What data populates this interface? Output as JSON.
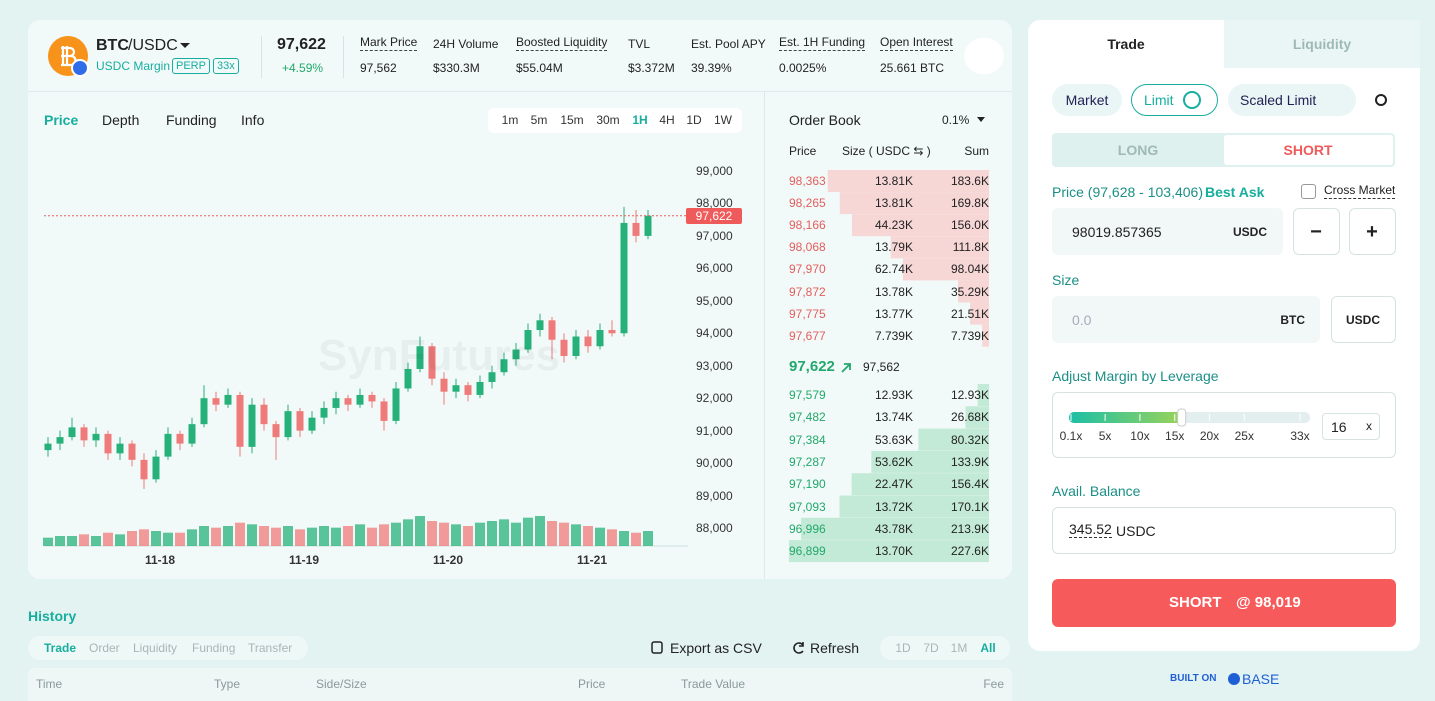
{
  "header": {
    "base": "BTC",
    "quote": "/USDC",
    "margin": "USDC Margin",
    "tag_perp": "PERP",
    "tag_lev": "33x",
    "price": "97,622",
    "change": "+4.59%",
    "stats": [
      {
        "label": "Mark Price",
        "value": "97,562"
      },
      {
        "label": "24H Volume",
        "value": "$330.3M"
      },
      {
        "label": "Boosted Liquidity",
        "value": "$55.04M"
      },
      {
        "label": "TVL",
        "value": "$3.372M"
      },
      {
        "label": "Est. Pool APY",
        "value": "39.39%"
      },
      {
        "label": "Est. 1H Funding",
        "value": "0.0025%"
      },
      {
        "label": "Open Interest",
        "value": "25.661 BTC"
      }
    ]
  },
  "chart_tabs": [
    "Price",
    "Depth",
    "Funding",
    "Info"
  ],
  "intervals": [
    "1m",
    "5m",
    "15m",
    "30m",
    "1H",
    "4H",
    "1D",
    "1W"
  ],
  "watermark": "SynFutures",
  "price_chart": {
    "type": "candlestick",
    "ylim": [
      88000,
      99000
    ],
    "yticks": [
      {
        "value": 99000,
        "label": "99,000"
      },
      {
        "value": 98000,
        "label": "98,000"
      },
      {
        "value": 97000,
        "label": "97,000"
      },
      {
        "value": 96000,
        "label": "96,000"
      },
      {
        "value": 95000,
        "label": "95,000"
      },
      {
        "value": 94000,
        "label": "94,000"
      },
      {
        "value": 93000,
        "label": "93,000"
      },
      {
        "value": 92000,
        "label": "92,000"
      },
      {
        "value": 91000,
        "label": "91,000"
      },
      {
        "value": 90000,
        "label": "90,000"
      },
      {
        "value": 89000,
        "label": "89,000"
      },
      {
        "value": 88000,
        "label": "88,000"
      }
    ],
    "xticks": [
      "11-18",
      "11-19",
      "11-20",
      "11-21"
    ],
    "last_price": {
      "value": 97622,
      "label": "97,622"
    },
    "up_color": "#26b07a",
    "down_color": "#ef7a7a",
    "candles": [
      [
        90400,
        90800,
        90200,
        90600
      ],
      [
        90600,
        91000,
        90400,
        90800
      ],
      [
        90800,
        91400,
        90700,
        91100
      ],
      [
        91100,
        91200,
        90500,
        90700
      ],
      [
        90700,
        91100,
        90500,
        90900
      ],
      [
        90900,
        91000,
        90100,
        90300
      ],
      [
        90300,
        90800,
        90100,
        90600
      ],
      [
        90600,
        90700,
        89900,
        90100
      ],
      [
        90100,
        90300,
        89200,
        89500
      ],
      [
        89500,
        90400,
        89400,
        90200
      ],
      [
        90200,
        91100,
        90100,
        90900
      ],
      [
        90900,
        91000,
        90400,
        90600
      ],
      [
        90600,
        91400,
        90500,
        91200
      ],
      [
        91200,
        92400,
        91100,
        92000
      ],
      [
        92000,
        92200,
        91600,
        91800
      ],
      [
        91800,
        92300,
        91700,
        92100
      ],
      [
        92100,
        92200,
        90200,
        90500
      ],
      [
        90500,
        92000,
        90300,
        91800
      ],
      [
        91800,
        92000,
        91000,
        91200
      ],
      [
        91200,
        91300,
        90100,
        90800
      ],
      [
        90800,
        91800,
        90700,
        91600
      ],
      [
        91600,
        91700,
        90800,
        91000
      ],
      [
        91000,
        91600,
        90900,
        91400
      ],
      [
        91400,
        91900,
        91200,
        91700
      ],
      [
        91700,
        92200,
        91500,
        92000
      ],
      [
        92000,
        92100,
        91600,
        91800
      ],
      [
        91800,
        92300,
        91700,
        92100
      ],
      [
        92100,
        92200,
        91700,
        91900
      ],
      [
        91900,
        92000,
        91000,
        91300
      ],
      [
        91300,
        92500,
        91200,
        92300
      ],
      [
        92300,
        93100,
        92200,
        92900
      ],
      [
        92900,
        93900,
        92800,
        93600
      ],
      [
        93600,
        93700,
        92400,
        92600
      ],
      [
        92600,
        92800,
        91800,
        92200
      ],
      [
        92200,
        92600,
        92000,
        92400
      ],
      [
        92400,
        92500,
        91900,
        92100
      ],
      [
        92100,
        92700,
        92000,
        92500
      ],
      [
        92500,
        93000,
        92300,
        92800
      ],
      [
        92800,
        93400,
        92700,
        93200
      ],
      [
        93200,
        93700,
        93000,
        93500
      ],
      [
        93500,
        94300,
        93400,
        94100
      ],
      [
        94100,
        94600,
        93900,
        94400
      ],
      [
        94400,
        94500,
        93200,
        93800
      ],
      [
        93800,
        94000,
        93100,
        93300
      ],
      [
        93300,
        94100,
        93200,
        93900
      ],
      [
        93900,
        94100,
        93400,
        93600
      ],
      [
        93600,
        94300,
        93500,
        94100
      ],
      [
        94100,
        94400,
        93900,
        94000
      ],
      [
        94000,
        97900,
        93900,
        97400
      ],
      [
        97400,
        97800,
        96800,
        97000
      ],
      [
        97000,
        97800,
        96900,
        97622
      ]
    ],
    "volume": [
      5,
      6,
      6,
      7,
      6,
      8,
      7,
      9,
      10,
      9,
      8,
      8,
      10,
      12,
      11,
      12,
      14,
      13,
      12,
      11,
      12,
      10,
      11,
      12,
      11,
      12,
      13,
      11,
      13,
      14,
      16,
      18,
      15,
      14,
      13,
      12,
      14,
      15,
      16,
      14,
      17,
      18,
      15,
      14,
      13,
      12,
      11,
      10,
      9,
      8,
      9
    ]
  },
  "order_book": {
    "title": "Order Book",
    "precision": "0.1%",
    "columns": [
      "Price",
      "Size ( USDC ⇆ )",
      "Sum"
    ],
    "asks": [
      {
        "price": "98,363",
        "size": "13.81K",
        "sum": {
          "value": 183.6,
          "label": "183.6K"
        }
      },
      {
        "price": "98,265",
        "size": "13.81K",
        "sum": {
          "value": 169.8,
          "label": "169.8K"
        }
      },
      {
        "price": "98,166",
        "size": "44.23K",
        "sum": {
          "value": 156.0,
          "label": "156.0K"
        }
      },
      {
        "price": "98,068",
        "size": "13.79K",
        "sum": {
          "value": 111.8,
          "label": "111.8K"
        }
      },
      {
        "price": "97,970",
        "size": "62.74K",
        "sum": {
          "value": 98.04,
          "label": "98.04K"
        }
      },
      {
        "price": "97,872",
        "size": "13.78K",
        "sum": {
          "value": 35.29,
          "label": "35.29K"
        }
      },
      {
        "price": "97,775",
        "size": "13.77K",
        "sum": {
          "value": 21.51,
          "label": "21.51K"
        }
      },
      {
        "price": "97,677",
        "size": "7.739K",
        "sum": {
          "value": 7.739,
          "label": "7.739K"
        }
      }
    ],
    "mid_price": "97,622",
    "mid_mark": "97,562",
    "bids": [
      {
        "price": "97,579",
        "size": "12.93K",
        "sum": {
          "value": 12.93,
          "label": "12.93K"
        }
      },
      {
        "price": "97,482",
        "size": "13.74K",
        "sum": {
          "value": 26.68,
          "label": "26.68K"
        }
      },
      {
        "price": "97,384",
        "size": "53.63K",
        "sum": {
          "value": 80.32,
          "label": "80.32K"
        }
      },
      {
        "price": "97,287",
        "size": "53.62K",
        "sum": {
          "value": 133.9,
          "label": "133.9K"
        }
      },
      {
        "price": "97,190",
        "size": "22.47K",
        "sum": {
          "value": 156.4,
          "label": "156.4K"
        }
      },
      {
        "price": "97,093",
        "size": "13.72K",
        "sum": {
          "value": 170.1,
          "label": "170.1K"
        }
      },
      {
        "price": "96,996",
        "size": "43.78K",
        "sum": {
          "value": 213.9,
          "label": "213.9K"
        }
      },
      {
        "price": "96,899",
        "size": "13.70K",
        "sum": {
          "value": 227.6,
          "label": "227.6K"
        }
      }
    ]
  },
  "trade_panel": {
    "tabs": [
      "Trade",
      "Liquidity"
    ],
    "order_types": [
      "Market",
      "Limit",
      "Scaled Limit"
    ],
    "sides": [
      "LONG",
      "SHORT"
    ],
    "price_label": "Price (97,628 - 103,406)",
    "best_ask": "Best Ask",
    "cross_market": "Cross Market",
    "price_input": "98019.857365",
    "price_unit": "USDC",
    "minus": "−",
    "plus": "+",
    "size_label": "Size",
    "size_placeholder": "0.0",
    "size_unit": "BTC",
    "size_toggle": "USDC",
    "leverage_label": "Adjust Margin by Leverage",
    "leverage_ticks": [
      {
        "value": 0.1,
        "label": "0.1x"
      },
      {
        "value": 5,
        "label": "5x"
      },
      {
        "value": 10,
        "label": "10x"
      },
      {
        "value": 15,
        "label": "15x"
      },
      {
        "value": 20,
        "label": "20x"
      },
      {
        "value": 25,
        "label": "25x"
      },
      {
        "value": 33,
        "label": "33x"
      }
    ],
    "leverage": 16,
    "leverage_unit": "x",
    "balance_label": "Avail. Balance",
    "balance": "345.52",
    "balance_unit": "USDC",
    "submit": "SHORT",
    "submit_price": "@ 98,019"
  },
  "history": {
    "title": "History",
    "tabs": [
      "Trade",
      "Order",
      "Liquidity",
      "Funding",
      "Transfer"
    ],
    "export": "Export as CSV",
    "refresh": "Refresh",
    "ranges": [
      "1D",
      "7D",
      "1M",
      "All"
    ],
    "columns": [
      "Time",
      "Type",
      "Side/Size",
      "Price",
      "Trade Value",
      "Fee"
    ]
  },
  "footer": {
    "built_on": "BUILT ON",
    "base": "BASE"
  }
}
